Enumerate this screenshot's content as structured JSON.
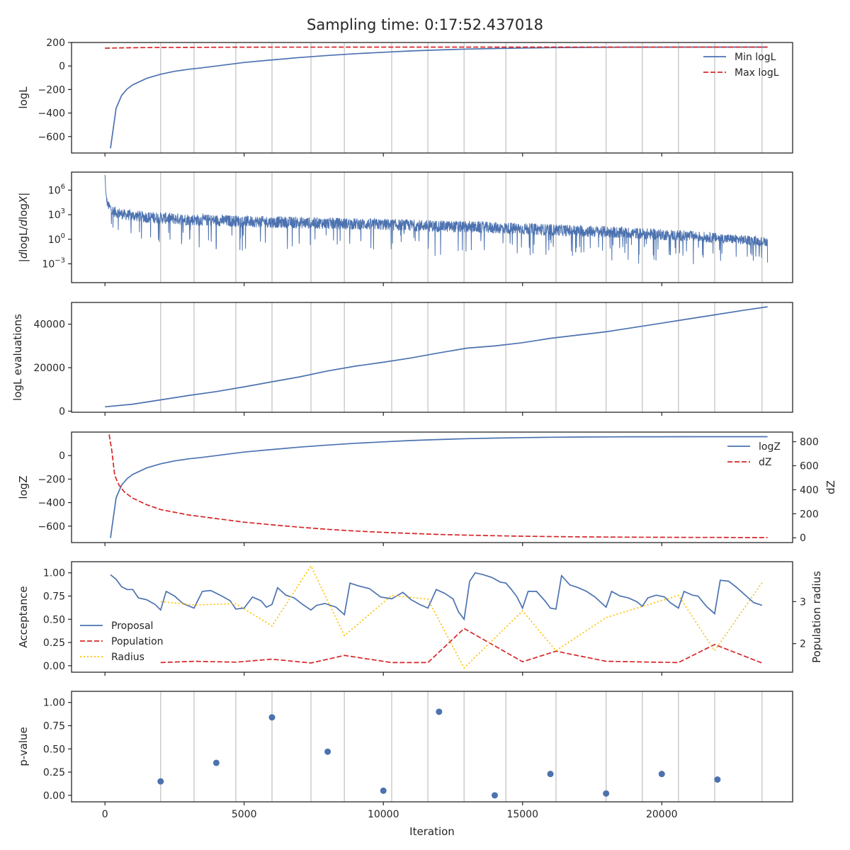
{
  "figure": {
    "title": "Sampling time: 0:17:52.437018",
    "xlabel": "Iteration"
  },
  "chart_data": [
    {
      "id": "loglike",
      "type": "line",
      "ylabel": "logL",
      "xlim": [
        -1200,
        24700
      ],
      "ylim": [
        -740,
        200
      ],
      "yticks": [
        200,
        0,
        -200,
        -400,
        -600
      ],
      "ytick_labels": [
        "200",
        "0",
        "−200",
        "−400",
        "−600"
      ],
      "legend_position": "top-right",
      "vlines": [
        2000,
        3200,
        4700,
        6000,
        7400,
        8600,
        10300,
        11600,
        12900,
        14400,
        16200,
        18000,
        19300,
        20600,
        21900,
        23600
      ],
      "series": [
        {
          "name": "Min logL",
          "color": "#4c72b0",
          "style": "solid",
          "x": [
            200,
            400,
            600,
            800,
            1000,
            1500,
            2000,
            2500,
            3000,
            3500,
            4000,
            5000,
            6000,
            7000,
            8000,
            9000,
            10000,
            11000,
            12000,
            13000,
            14000,
            15000,
            16000,
            17000,
            18000,
            19000,
            20000,
            21000,
            22000,
            23000,
            23800
          ],
          "y": [
            -700,
            -360,
            -250,
            -195,
            -160,
            -105,
            -70,
            -45,
            -28,
            -15,
            0,
            30,
            52,
            72,
            90,
            105,
            117,
            128,
            137,
            144,
            149,
            153,
            156,
            158,
            159,
            160,
            160,
            161,
            161,
            161,
            161
          ]
        },
        {
          "name": "Max logL",
          "color": "#d62728",
          "style": "dashed",
          "x": [
            0,
            700,
            2000,
            5000,
            10000,
            15000,
            20000,
            23800
          ],
          "y": [
            152,
            155,
            158,
            160,
            161,
            161,
            161,
            161
          ]
        }
      ]
    },
    {
      "id": "dlogl",
      "type": "line",
      "ylabel": "|dlogL/dlogX|",
      "yscale": "log",
      "ylim_log10": [
        -5.3,
        8.2
      ],
      "yticks_log10": [
        6,
        3,
        0,
        -3
      ],
      "legend_position": "none",
      "vlines": [
        2000,
        3200,
        4700,
        6000,
        7400,
        8600,
        10300,
        11600,
        12900,
        14400,
        16200,
        18000,
        19300,
        20600,
        21900,
        23600
      ],
      "series": [
        {
          "name": "",
          "color": "#4c72b0",
          "style": "noisy",
          "x": [
            0,
            40,
            100,
            300,
            700,
            1500,
            3000,
            6000,
            10000,
            14000,
            18000,
            21000,
            23800
          ],
          "center_log10": [
            7.8,
            5.2,
            4.2,
            3.4,
            3.0,
            2.7,
            2.4,
            2.1,
            1.8,
            1.4,
            0.9,
            0.4,
            -0.3
          ],
          "spread_log10": [
            0.3,
            0.8,
            1.0,
            1.2,
            1.2,
            1.3,
            1.3,
            1.3,
            1.3,
            1.3,
            1.3,
            1.2,
            1.0
          ]
        }
      ]
    },
    {
      "id": "ncall",
      "type": "line",
      "ylabel": "logL evaluations",
      "ylim": [
        -500,
        50000
      ],
      "yticks": [
        40000,
        20000,
        0
      ],
      "ytick_labels": [
        "40000",
        "20000",
        "0"
      ],
      "legend_position": "none",
      "vlines": [
        2000,
        3200,
        4700,
        6000,
        7400,
        8600,
        10300,
        11600,
        12900,
        14400,
        16200,
        18000,
        19300,
        20600,
        21900,
        23600
      ],
      "series": [
        {
          "name": "",
          "color": "#4c72b0",
          "style": "solid",
          "x": [
            0,
            1000,
            2000,
            3000,
            4000,
            5000,
            6000,
            7000,
            8000,
            9000,
            10000,
            11000,
            12000,
            13000,
            14000,
            15000,
            16000,
            17000,
            18000,
            19000,
            20000,
            21000,
            22000,
            23000,
            23800
          ],
          "y": [
            2000,
            3200,
            5200,
            7200,
            9000,
            11200,
            13500,
            15800,
            18500,
            20700,
            22500,
            24500,
            26800,
            29000,
            30000,
            31500,
            33500,
            35000,
            36500,
            38500,
            40500,
            42500,
            44500,
            46500,
            48000
          ]
        }
      ]
    },
    {
      "id": "logz",
      "type": "line",
      "ylabel": "logZ",
      "ylabel_right": "dZ",
      "ylim": [
        -740,
        200
      ],
      "yticks": [
        0,
        -200,
        -400,
        -600
      ],
      "ytick_labels": [
        "0",
        "−200",
        "−400",
        "−600"
      ],
      "ylim_right": [
        -40,
        880
      ],
      "yticks_right": [
        800,
        600,
        400,
        200,
        0
      ],
      "ytick_labels_right": [
        "800",
        "600",
        "400",
        "200",
        "0"
      ],
      "legend_position": "top-right",
      "vlines": [],
      "series": [
        {
          "name": "logZ",
          "color": "#4c72b0",
          "style": "solid",
          "axis": "left",
          "x": [
            200,
            400,
            600,
            800,
            1000,
            1500,
            2000,
            2500,
            3000,
            3500,
            4000,
            5000,
            6000,
            7000,
            8000,
            9000,
            10000,
            11000,
            12000,
            13000,
            14000,
            15000,
            16000,
            17000,
            18000,
            19000,
            20000,
            21000,
            22000,
            23000,
            23800
          ],
          "y": [
            -700,
            -360,
            -250,
            -195,
            -160,
            -105,
            -70,
            -45,
            -28,
            -15,
            0,
            30,
            52,
            72,
            90,
            105,
            117,
            128,
            137,
            144,
            149,
            153,
            156,
            158,
            159,
            160,
            160,
            161,
            161,
            161,
            161
          ]
        },
        {
          "name": "dZ",
          "color": "#d62728",
          "style": "dashed",
          "axis": "right",
          "x": [
            150,
            250,
            350,
            500,
            700,
            1000,
            1500,
            2000,
            3000,
            4000,
            5000,
            6000,
            7000,
            8000,
            9000,
            10000,
            11000,
            12000,
            13000,
            14000,
            15000,
            16000,
            17000,
            18000,
            19000,
            20000,
            21000,
            22000,
            23000,
            23800
          ],
          "y": [
            860,
            720,
            520,
            440,
            380,
            330,
            275,
            235,
            190,
            160,
            130,
            108,
            88,
            70,
            56,
            45,
            36,
            28,
            22,
            17,
            13,
            10,
            8,
            6,
            5,
            4,
            3,
            3,
            2,
            2
          ]
        }
      ]
    },
    {
      "id": "acceptance",
      "type": "line",
      "ylabel": "Acceptance",
      "ylabel_right": "Population radius",
      "ylim": [
        -0.07,
        1.12
      ],
      "yticks": [
        1.0,
        0.75,
        0.5,
        0.25,
        0.0
      ],
      "ytick_labels": [
        "1.00",
        "0.75",
        "0.50",
        "0.25",
        "0.00"
      ],
      "ylim_right": [
        1.32,
        3.95
      ],
      "yticks_right": [
        3,
        2
      ],
      "ytick_labels_right": [
        "3",
        "2"
      ],
      "legend_position": "lower-left",
      "vlines": [],
      "series": [
        {
          "name": "Proposal",
          "color": "#4c72b0",
          "style": "solid",
          "axis": "left",
          "x": [
            200,
            400,
            600,
            800,
            1000,
            1200,
            1500,
            1800,
            2000,
            2200,
            2500,
            2800,
            3200,
            3500,
            3800,
            4200,
            4500,
            4700,
            5000,
            5300,
            5600,
            5800,
            6000,
            6200,
            6500,
            6800,
            7100,
            7400,
            7600,
            7900,
            8300,
            8600,
            8800,
            9100,
            9500,
            9900,
            10300,
            10700,
            11000,
            11300,
            11600,
            11900,
            12200,
            12500,
            12700,
            12900,
            13100,
            13300,
            13600,
            13900,
            14200,
            14400,
            14600,
            14800,
            15000,
            15200,
            15500,
            15800,
            16000,
            16200,
            16400,
            16700,
            17000,
            17300,
            17600,
            18000,
            18200,
            18500,
            18800,
            19100,
            19300,
            19500,
            19800,
            20100,
            20300,
            20600,
            20800,
            21100,
            21300,
            21600,
            21900,
            22100,
            22400,
            22700,
            23000,
            23300,
            23600
          ],
          "y": [
            0.98,
            0.93,
            0.85,
            0.82,
            0.82,
            0.73,
            0.71,
            0.66,
            0.6,
            0.8,
            0.75,
            0.67,
            0.62,
            0.8,
            0.81,
            0.75,
            0.7,
            0.61,
            0.62,
            0.74,
            0.7,
            0.63,
            0.66,
            0.84,
            0.76,
            0.73,
            0.66,
            0.6,
            0.65,
            0.67,
            0.63,
            0.55,
            0.89,
            0.86,
            0.83,
            0.74,
            0.72,
            0.79,
            0.71,
            0.66,
            0.62,
            0.82,
            0.78,
            0.72,
            0.58,
            0.5,
            0.91,
            1.0,
            0.98,
            0.95,
            0.9,
            0.89,
            0.82,
            0.74,
            0.62,
            0.8,
            0.8,
            0.7,
            0.62,
            0.61,
            0.97,
            0.87,
            0.84,
            0.8,
            0.74,
            0.63,
            0.8,
            0.75,
            0.73,
            0.69,
            0.64,
            0.73,
            0.76,
            0.74,
            0.68,
            0.62,
            0.8,
            0.76,
            0.75,
            0.64,
            0.56,
            0.92,
            0.91,
            0.84,
            0.76,
            0.68,
            0.65
          ]
        },
        {
          "name": "Population",
          "color": "#d62728",
          "style": "dashed",
          "axis": "right",
          "x": [
            2000,
            3200,
            4700,
            6000,
            7400,
            8600,
            10300,
            11600,
            12900,
            15000,
            16200,
            18000,
            20600,
            21900,
            23600
          ],
          "y": [
            1.55,
            1.58,
            1.56,
            1.63,
            1.54,
            1.72,
            1.55,
            1.55,
            2.36,
            1.57,
            1.82,
            1.58,
            1.55,
            1.98,
            1.54
          ]
        },
        {
          "name": "Radius",
          "color": "#ffc000",
          "style": "dotted",
          "axis": "right",
          "x": [
            2000,
            3200,
            4700,
            6000,
            7400,
            8600,
            10300,
            11600,
            12900,
            15000,
            16200,
            18000,
            20600,
            21900,
            23600
          ],
          "y": [
            3.0,
            2.92,
            2.95,
            2.42,
            3.85,
            2.19,
            3.15,
            3.06,
            1.42,
            2.78,
            1.83,
            2.62,
            3.15,
            1.83,
            3.45
          ]
        }
      ]
    },
    {
      "id": "pvalue",
      "type": "scatter",
      "ylabel": "p-value",
      "ylim": [
        -0.07,
        1.12
      ],
      "yticks": [
        1.0,
        0.75,
        0.5,
        0.25,
        0.0
      ],
      "ytick_labels": [
        "1.00",
        "0.75",
        "0.50",
        "0.25",
        "0.00"
      ],
      "legend_position": "none",
      "vlines": [
        2000,
        3200,
        4700,
        6000,
        7400,
        8600,
        10300,
        11600,
        12900,
        14400,
        16200,
        18000,
        19300,
        20600,
        21900,
        23600
      ],
      "series": [
        {
          "name": "",
          "color": "#4c72b0",
          "style": "marker",
          "x": [
            2000,
            4000,
            6000,
            8000,
            10000,
            12000,
            14000,
            16000,
            18000,
            20000,
            22000
          ],
          "y": [
            0.15,
            0.35,
            0.84,
            0.47,
            0.05,
            0.9,
            0.0,
            0.23,
            0.02,
            0.23,
            0.17
          ]
        }
      ]
    }
  ],
  "x_axis": {
    "xlim": [
      -1200,
      24700
    ],
    "ticks": [
      0,
      5000,
      10000,
      15000,
      20000
    ],
    "tick_labels": [
      "0",
      "5000",
      "10000",
      "15000",
      "20000"
    ]
  }
}
